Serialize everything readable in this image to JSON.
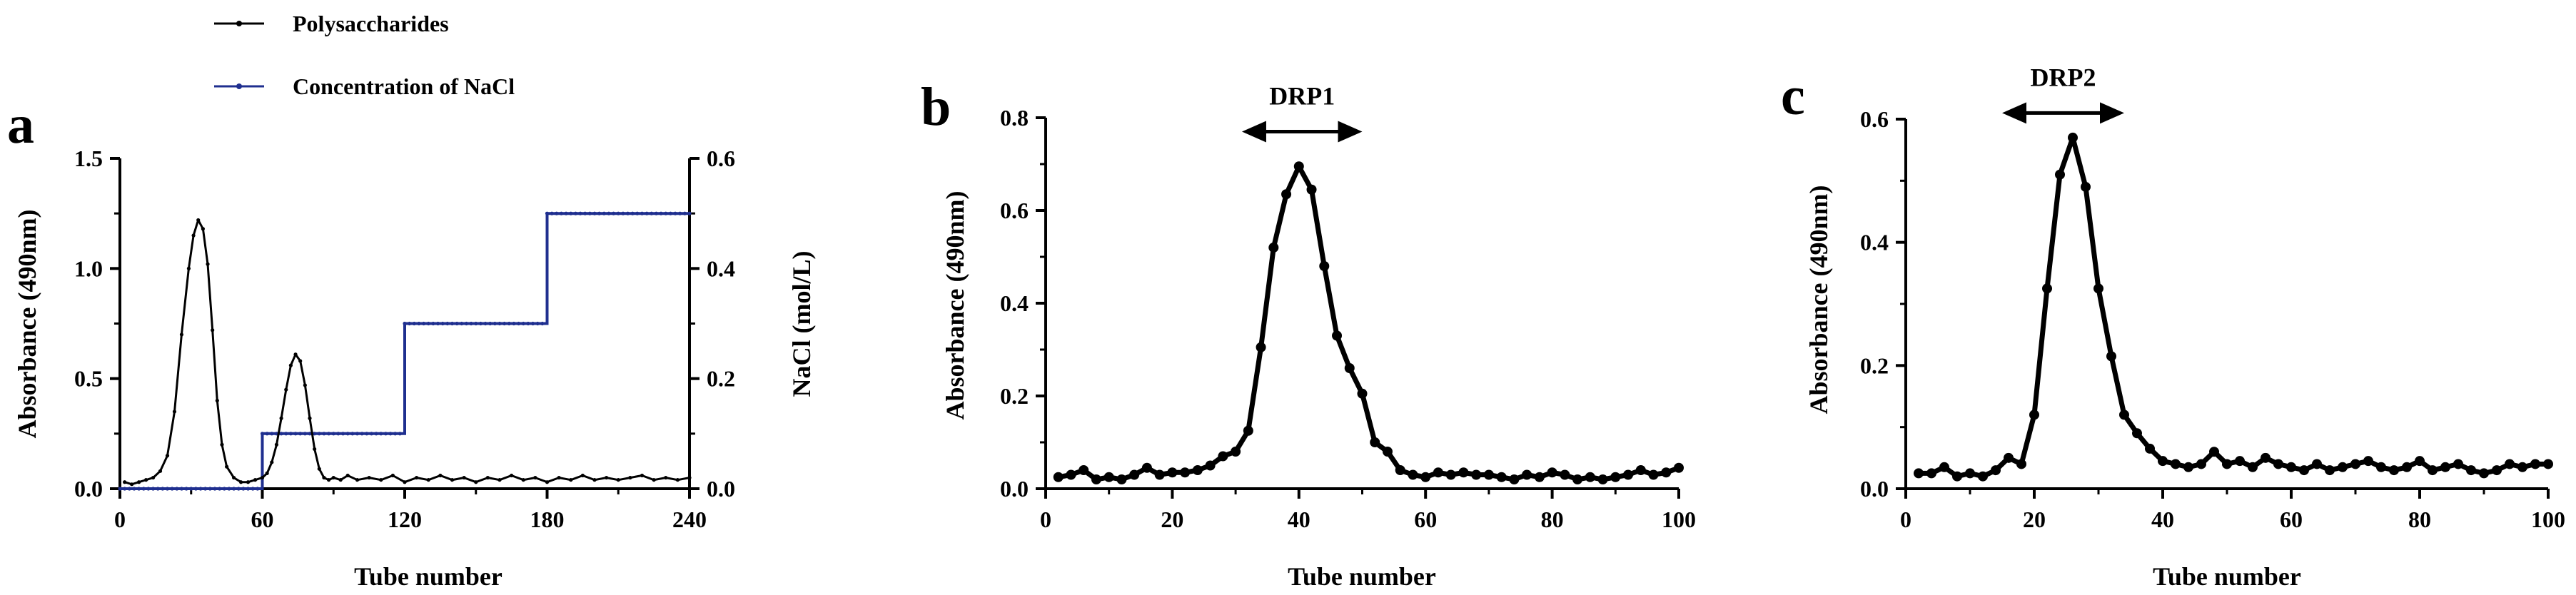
{
  "chart_data": [
    {
      "panel": "a",
      "type": "line",
      "xlabel": "Tube number",
      "ylabel": "Absorbance (490nm)",
      "y2label": "NaCl (mol/L)",
      "xlim": [
        0,
        240
      ],
      "ylim": [
        0,
        1.5
      ],
      "y2lim": [
        0,
        0.6
      ],
      "xticks": [
        "0",
        "60",
        "120",
        "180",
        "240"
      ],
      "yticks": [
        "0.0",
        "0.5",
        "1.0",
        "1.5"
      ],
      "y2ticks": [
        "0.0",
        "0.2",
        "0.4",
        "0.6"
      ],
      "legend_position": "top",
      "series": [
        {
          "name": "Polysaccharides",
          "color": "#000000",
          "axis": "left",
          "x": [
            2,
            5,
            8,
            11,
            14,
            17,
            20,
            23,
            26,
            29,
            31,
            33,
            35,
            37,
            39,
            41,
            43,
            45,
            48,
            51,
            54,
            57,
            60,
            62,
            64,
            66,
            68,
            70,
            72,
            74,
            76,
            78,
            80,
            82,
            84,
            86,
            88,
            90,
            93,
            96,
            100,
            105,
            110,
            115,
            120,
            125,
            130,
            135,
            140,
            145,
            150,
            155,
            160,
            165,
            170,
            175,
            180,
            185,
            190,
            195,
            200,
            205,
            210,
            215,
            220,
            225,
            230,
            235,
            240
          ],
          "y": [
            0.03,
            0.02,
            0.03,
            0.04,
            0.05,
            0.08,
            0.15,
            0.35,
            0.7,
            1.0,
            1.15,
            1.22,
            1.18,
            1.02,
            0.72,
            0.4,
            0.2,
            0.1,
            0.05,
            0.03,
            0.03,
            0.04,
            0.05,
            0.07,
            0.12,
            0.2,
            0.32,
            0.45,
            0.56,
            0.61,
            0.58,
            0.47,
            0.32,
            0.18,
            0.09,
            0.05,
            0.04,
            0.05,
            0.04,
            0.06,
            0.04,
            0.05,
            0.04,
            0.06,
            0.03,
            0.05,
            0.04,
            0.06,
            0.04,
            0.05,
            0.03,
            0.05,
            0.04,
            0.06,
            0.04,
            0.05,
            0.03,
            0.05,
            0.04,
            0.06,
            0.04,
            0.05,
            0.04,
            0.05,
            0.06,
            0.04,
            0.05,
            0.04,
            0.05
          ]
        },
        {
          "name": "Concentration of NaCl",
          "color": "#1f2f8f",
          "axis": "right",
          "step_edges": [
            0,
            60,
            120,
            180,
            240
          ],
          "step_levels": [
            0.0,
            0.1,
            0.3,
            0.5
          ]
        }
      ]
    },
    {
      "panel": "b",
      "type": "line",
      "xlabel": "Tube number",
      "ylabel": "Absorbance (490nm)",
      "xlim": [
        0,
        100
      ],
      "ylim": [
        0,
        0.8
      ],
      "xticks": [
        "0",
        "20",
        "40",
        "60",
        "80",
        "100"
      ],
      "yticks": [
        "0.0",
        "0.2",
        "0.4",
        "0.6",
        "0.8"
      ],
      "annotation": {
        "text": "DRP1",
        "x_start": 31,
        "x_end": 50,
        "y": 0.77
      },
      "series": [
        {
          "color": "#000000",
          "x": [
            2,
            4,
            6,
            8,
            10,
            12,
            14,
            16,
            18,
            20,
            22,
            24,
            26,
            28,
            30,
            32,
            34,
            36,
            38,
            40,
            42,
            44,
            46,
            48,
            50,
            52,
            54,
            56,
            58,
            60,
            62,
            64,
            66,
            68,
            70,
            72,
            74,
            76,
            78,
            80,
            82,
            84,
            86,
            88,
            90,
            92,
            94,
            96,
            98,
            100
          ],
          "y": [
            0.025,
            0.03,
            0.04,
            0.02,
            0.025,
            0.02,
            0.03,
            0.045,
            0.03,
            0.035,
            0.035,
            0.04,
            0.05,
            0.07,
            0.08,
            0.125,
            0.305,
            0.52,
            0.635,
            0.695,
            0.645,
            0.48,
            0.33,
            0.26,
            0.205,
            0.1,
            0.08,
            0.04,
            0.03,
            0.025,
            0.035,
            0.03,
            0.035,
            0.03,
            0.03,
            0.025,
            0.02,
            0.03,
            0.025,
            0.035,
            0.03,
            0.02,
            0.025,
            0.02,
            0.025,
            0.03,
            0.04,
            0.03,
            0.035,
            0.045
          ]
        }
      ]
    },
    {
      "panel": "c",
      "type": "line",
      "xlabel": "Tube number",
      "ylabel": "Absorbance (490nm)",
      "xlim": [
        0,
        100
      ],
      "ylim": [
        0,
        0.6
      ],
      "xticks": [
        "0",
        "20",
        "40",
        "60",
        "80",
        "100"
      ],
      "yticks": [
        "0.0",
        "0.2",
        "0.4",
        "0.6"
      ],
      "annotation": {
        "text": "DRP2",
        "x_start": 15,
        "x_end": 34,
        "y": 0.61
      },
      "series": [
        {
          "color": "#000000",
          "x": [
            2,
            4,
            6,
            8,
            10,
            12,
            14,
            16,
            18,
            20,
            22,
            24,
            26,
            28,
            30,
            32,
            34,
            36,
            38,
            40,
            42,
            44,
            46,
            48,
            50,
            52,
            54,
            56,
            58,
            60,
            62,
            64,
            66,
            68,
            70,
            72,
            74,
            76,
            78,
            80,
            82,
            84,
            86,
            88,
            90,
            92,
            94,
            96,
            98,
            100
          ],
          "y": [
            0.025,
            0.025,
            0.035,
            0.02,
            0.025,
            0.02,
            0.03,
            0.05,
            0.04,
            0.12,
            0.325,
            0.51,
            0.57,
            0.49,
            0.325,
            0.215,
            0.12,
            0.09,
            0.065,
            0.045,
            0.04,
            0.035,
            0.04,
            0.06,
            0.04,
            0.045,
            0.035,
            0.05,
            0.04,
            0.035,
            0.03,
            0.04,
            0.03,
            0.035,
            0.04,
            0.045,
            0.035,
            0.03,
            0.035,
            0.045,
            0.03,
            0.035,
            0.04,
            0.03,
            0.025,
            0.03,
            0.04,
            0.035,
            0.04,
            0.04
          ]
        }
      ]
    }
  ]
}
